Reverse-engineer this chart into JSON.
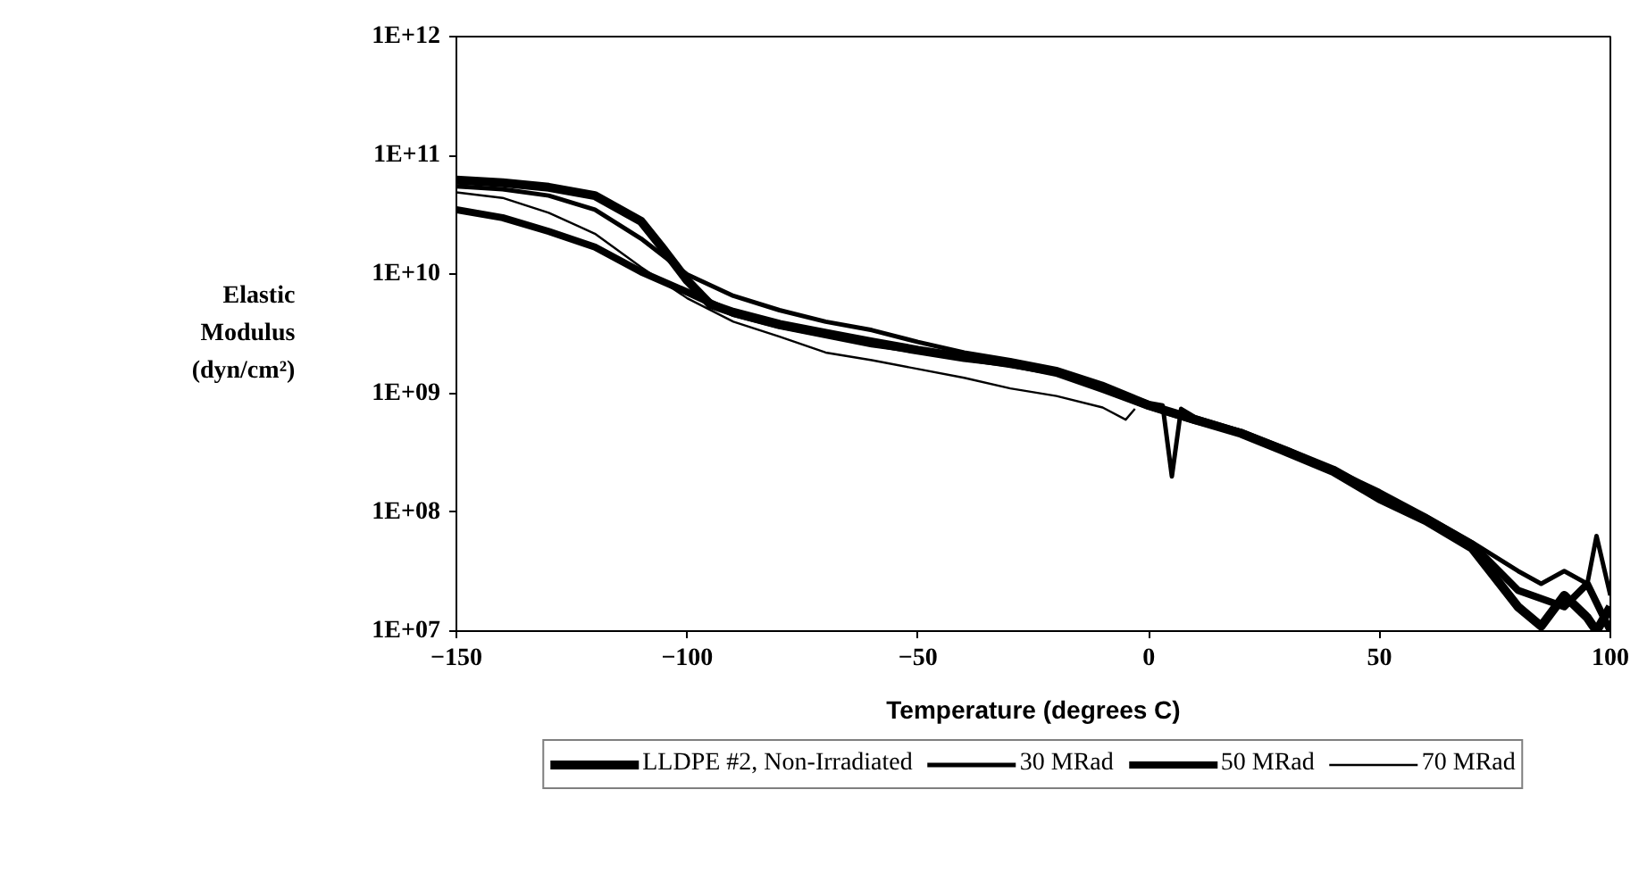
{
  "chart_data": {
    "type": "line",
    "xlabel": "Temperature (degrees C)",
    "ylabel": "Elastic\nModulus\n(dyn/cm²)",
    "log": "y",
    "legend": "bottom",
    "grid": false,
    "marker": "none",
    "line_style": "solid",
    "xlim": [
      -150,
      100
    ],
    "xticks": [
      -150,
      -100,
      -50,
      0,
      50,
      100
    ],
    "ylim": [
      10000000.0,
      1000000000000.0
    ],
    "yticks": [
      {
        "value": 10000000.0,
        "label": "1E+07"
      },
      {
        "value": 100000000.0,
        "label": "1E+08"
      },
      {
        "value": 1000000000.0,
        "label": "1E+09"
      },
      {
        "value": 10000000000.0,
        "label": "1E+10"
      },
      {
        "value": 100000000000.0,
        "label": "1E+11"
      },
      {
        "value": 1000000000000.0,
        "label": "1E+12"
      }
    ],
    "series": [
      {
        "name": "LLDPE #2, Non-Irradiated",
        "color": "#000000",
        "x": [
          -150,
          -140,
          -130,
          -120,
          -110,
          -105,
          -100,
          -95,
          -90,
          -80,
          -70,
          -60,
          -50,
          -40,
          -30,
          -20,
          -10,
          0,
          10,
          20,
          30,
          40,
          50,
          60,
          70,
          80,
          85,
          90,
          95,
          97,
          100
        ],
        "values": [
          62000000000.0,
          59000000000.0,
          54000000000.0,
          46000000000.0,
          28000000000.0,
          16000000000.0,
          8900000000.0,
          5600000000.0,
          4800000000.0,
          3800000000.0,
          3200000000.0,
          2700000000.0,
          2300000000.0,
          2000000000.0,
          1800000000.0,
          1500000000.0,
          1100000000.0,
          790000000.0,
          600000000.0,
          460000000.0,
          320000000.0,
          220000000.0,
          130000000.0,
          85000000.0,
          50000000.0,
          16000000.0,
          11000000.0,
          20000000.0,
          13000000.0,
          10000000.0,
          16000000.0
        ]
      },
      {
        "name": "30 MRad",
        "color": "#000000",
        "x": [
          -150,
          -140,
          -130,
          -120,
          -110,
          -100,
          -90,
          -80,
          -70,
          -60,
          -50,
          -40,
          -30,
          -20,
          -10,
          0,
          3,
          5,
          7,
          10,
          20,
          30,
          40,
          50,
          60,
          70,
          80,
          85,
          90,
          95,
          97,
          100
        ],
        "values": [
          55000000000.0,
          52000000000.0,
          46000000000.0,
          35000000000.0,
          20000000000.0,
          10000000000.0,
          6600000000.0,
          5000000000.0,
          4000000000.0,
          3400000000.0,
          2700000000.0,
          2200000000.0,
          1900000000.0,
          1600000000.0,
          1200000000.0,
          830000000.0,
          790000000.0,
          200000000.0,
          740000000.0,
          630000000.0,
          480000000.0,
          340000000.0,
          230000000.0,
          150000000.0,
          93000000.0,
          56000000.0,
          32000000.0,
          25000000.0,
          32000000.0,
          25000000.0,
          63000000.0,
          20000000.0
        ]
      },
      {
        "name": "50 MRad",
        "color": "#000000",
        "x": [
          -150,
          -140,
          -130,
          -120,
          -110,
          -100,
          -90,
          -80,
          -70,
          -60,
          -50,
          -40,
          -30,
          -20,
          -10,
          0,
          10,
          20,
          30,
          40,
          50,
          60,
          70,
          80,
          90,
          95,
          100
        ],
        "values": [
          35000000000.0,
          30000000000.0,
          23000000000.0,
          17000000000.0,
          10500000000.0,
          7100000000.0,
          4700000000.0,
          3700000000.0,
          3100000000.0,
          2600000000.0,
          2300000000.0,
          2000000000.0,
          1750000000.0,
          1500000000.0,
          1100000000.0,
          780000000.0,
          590000000.0,
          470000000.0,
          330000000.0,
          230000000.0,
          140000000.0,
          90000000.0,
          54000000.0,
          22000000.0,
          16000000.0,
          25000000.0,
          10000000.0
        ]
      },
      {
        "name": "70 MRad",
        "color": "#000000",
        "x": [
          -150,
          -140,
          -130,
          -120,
          -110,
          -100,
          -90,
          -80,
          -70,
          -60,
          -50,
          -40,
          -30,
          -20,
          -10,
          -5,
          -3
        ],
        "values": [
          49000000000.0,
          44000000000.0,
          33000000000.0,
          22000000000.0,
          11500000000.0,
          6300000000.0,
          4000000000.0,
          3000000000.0,
          2200000000.0,
          1900000000.0,
          1600000000.0,
          1350000000.0,
          1100000000.0,
          950000000.0,
          760000000.0,
          600000000.0,
          740000000.0
        ]
      }
    ]
  }
}
